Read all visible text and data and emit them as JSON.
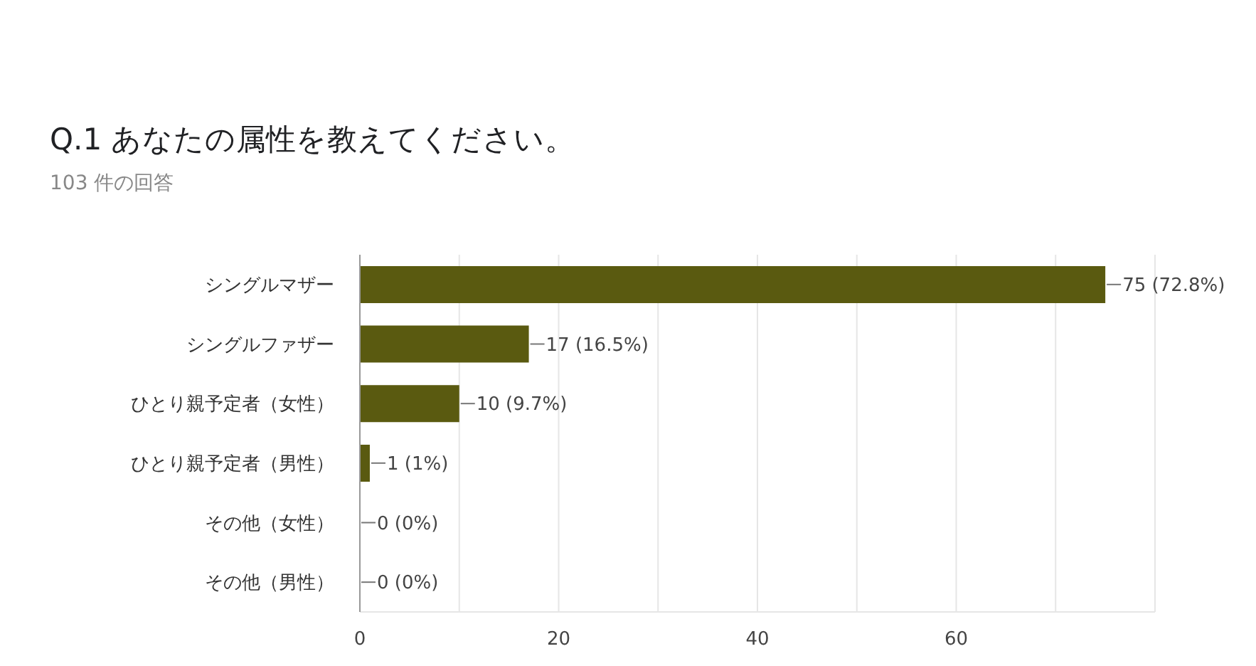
{
  "chart_data": {
    "type": "bar",
    "orientation": "horizontal",
    "title": "Q.1 あなたの属性を教えてください。",
    "subtitle": "103 件の回答",
    "categories": [
      "シングルマザー",
      "シングルファザー",
      "ひとり親予定者（女性）",
      "ひとり親予定者（男性）",
      "その他（女性）",
      "その他（男性）"
    ],
    "values": [
      75,
      17,
      10,
      1,
      0,
      0
    ],
    "value_labels": [
      "75 (72.8%)",
      "17 (16.5%)",
      "10 (9.7%)",
      "1 (1%)",
      "0 (0%)",
      "0 (0%)"
    ],
    "color": "#5a5a10",
    "xlim": [
      0,
      80
    ],
    "xticks": [
      0,
      {
        "value": 10,
        "label": null
      },
      20,
      {
        "value": 30,
        "label": null
      },
      40,
      {
        "value": 50,
        "label": null
      },
      60,
      {
        "value": 70,
        "label": null
      },
      {
        "value": 80,
        "label": null
      }
    ],
    "grid": "x"
  }
}
